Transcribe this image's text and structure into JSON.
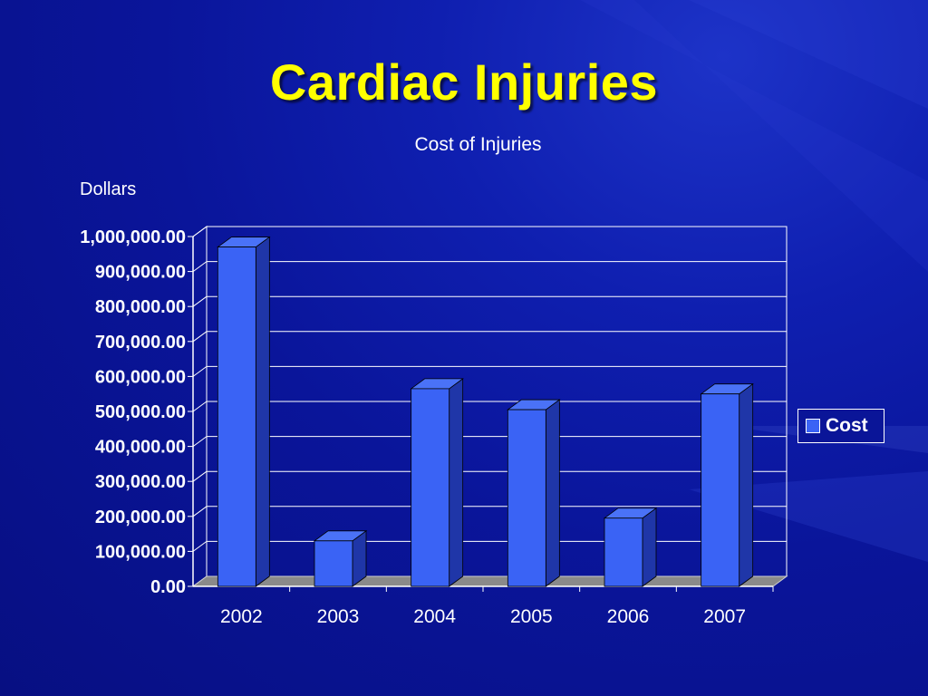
{
  "slide": {
    "title": "Cardiac Injuries"
  },
  "chart_data": {
    "type": "bar",
    "title": "Cost of Injuries",
    "ylabel": "Dollars",
    "xlabel": "",
    "categories": [
      "2002",
      "2003",
      "2004",
      "2005",
      "2006",
      "2007"
    ],
    "series": [
      {
        "name": "Cost",
        "values": [
          970000,
          130000,
          565000,
          505000,
          195000,
          550000
        ]
      }
    ],
    "ylim": [
      0,
      1000000
    ],
    "yticks": [
      0,
      100000,
      200000,
      300000,
      400000,
      500000,
      600000,
      700000,
      800000,
      900000,
      1000000
    ],
    "ytick_labels": [
      "0.00",
      "100,000.00",
      "200,000.00",
      "300,000.00",
      "400,000.00",
      "500,000.00",
      "600,000.00",
      "700,000.00",
      "800,000.00",
      "900,000.00",
      "1,000,000.00"
    ],
    "grid": true,
    "legend_position": "right",
    "style": "3d-column"
  },
  "colors": {
    "background": "#0a159a",
    "title": "#ffff00",
    "bar_front": "#3a63f5",
    "bar_side": "#1f36a8",
    "bar_top": "#4a72f7",
    "floor": "#8a8a8a",
    "gridline": "#ffffff"
  }
}
